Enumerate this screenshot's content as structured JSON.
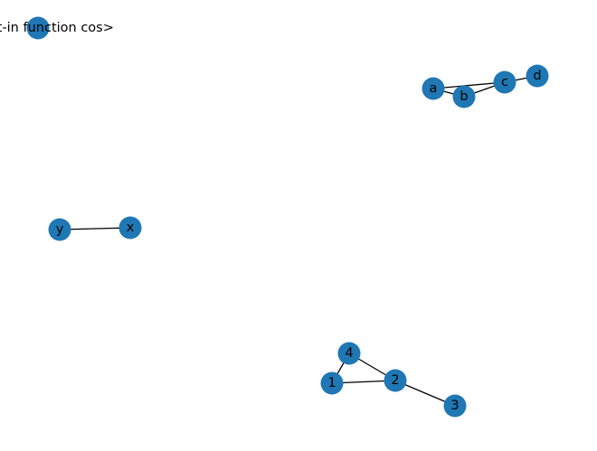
{
  "graph": {
    "node_color": "#1f77b4",
    "edge_color": "#000000",
    "nodes": [
      {
        "id": "cos",
        "label": "<built-in function cos>"
      },
      {
        "id": "a",
        "label": "a"
      },
      {
        "id": "b",
        "label": "b"
      },
      {
        "id": "c",
        "label": "c"
      },
      {
        "id": "d",
        "label": "d"
      },
      {
        "id": "y",
        "label": "y"
      },
      {
        "id": "x",
        "label": "x"
      },
      {
        "id": "4",
        "label": "4"
      },
      {
        "id": "1",
        "label": "1"
      },
      {
        "id": "2",
        "label": "2"
      },
      {
        "id": "3",
        "label": "3"
      }
    ],
    "edges": [
      {
        "source": "a",
        "target": "b"
      },
      {
        "source": "a",
        "target": "c"
      },
      {
        "source": "b",
        "target": "c"
      },
      {
        "source": "c",
        "target": "d"
      },
      {
        "source": "y",
        "target": "x"
      },
      {
        "source": "4",
        "target": "1"
      },
      {
        "source": "4",
        "target": "2"
      },
      {
        "source": "1",
        "target": "2"
      },
      {
        "source": "2",
        "target": "3"
      }
    ]
  }
}
